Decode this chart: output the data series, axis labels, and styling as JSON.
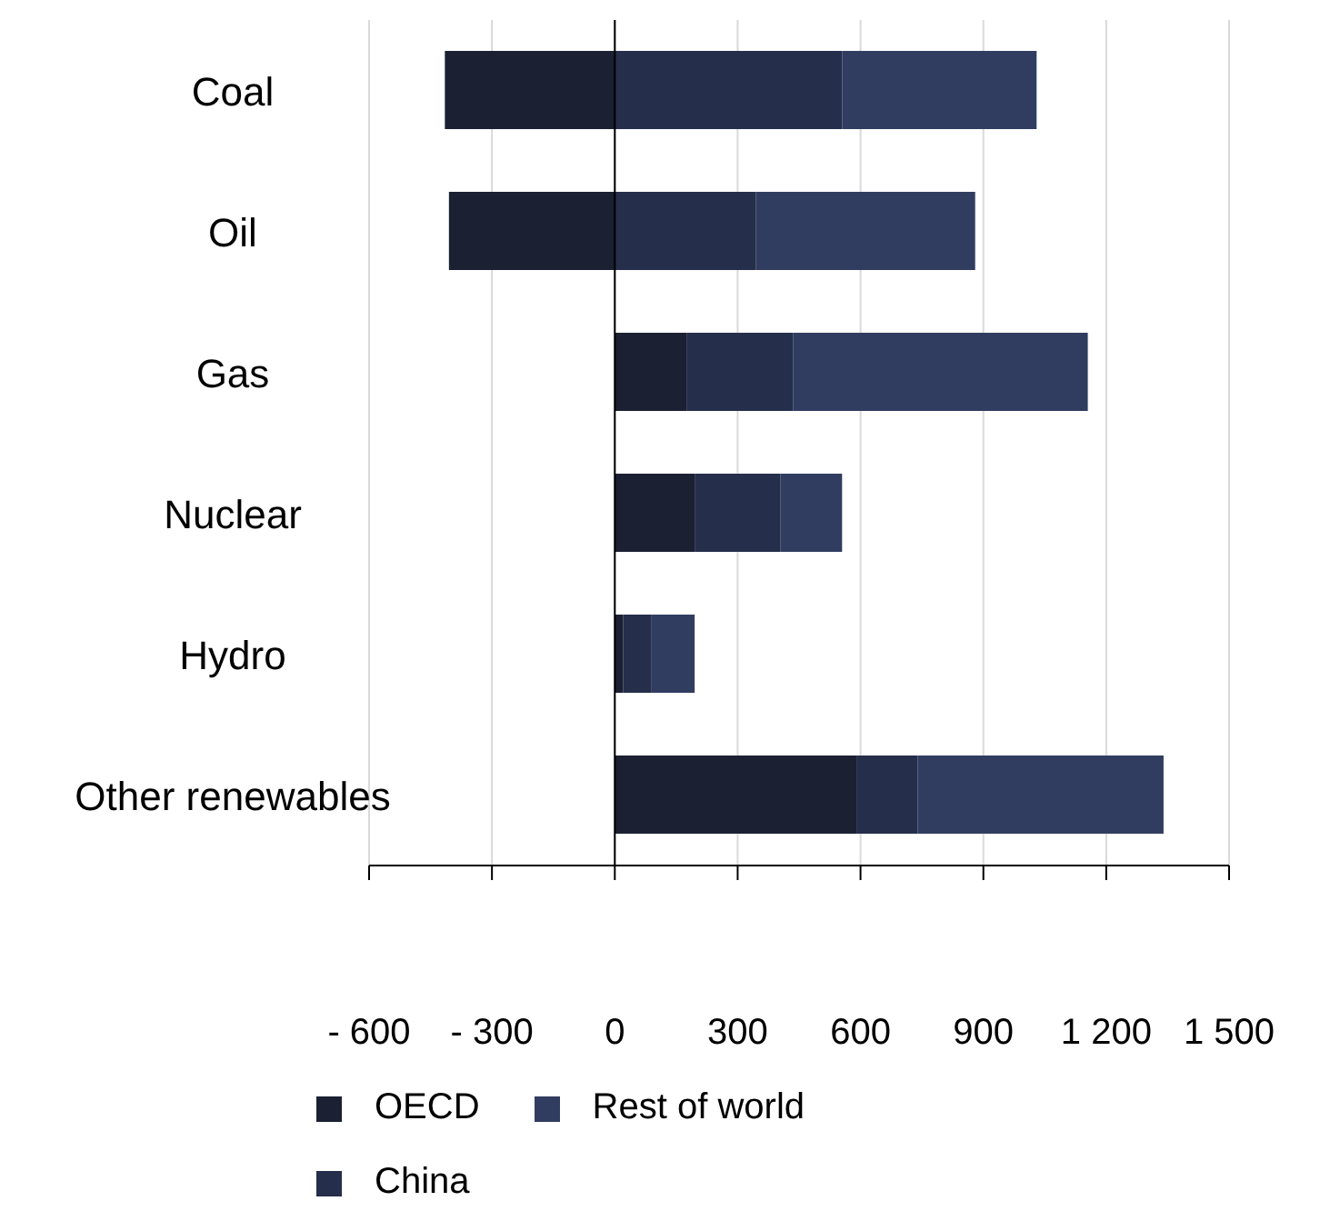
{
  "chart_data": {
    "type": "bar",
    "orientation": "horizontal",
    "stacked": true,
    "categories": [
      "Coal",
      "Oil",
      "Gas",
      "Nuclear",
      "Hydro",
      "Other renewables"
    ],
    "series": [
      {
        "name": "OECD",
        "color": "#1b2032",
        "values": [
          -415,
          -405,
          175,
          195,
          20,
          590
        ]
      },
      {
        "name": "China",
        "color": "#252e4a",
        "values": [
          555,
          345,
          260,
          210,
          70,
          150
        ]
      },
      {
        "name": "Rest of world",
        "color": "#313d60",
        "values": [
          475,
          535,
          720,
          150,
          105,
          600
        ]
      }
    ],
    "xlim": [
      -600,
      1500
    ],
    "xticks": [
      {
        "value": -600,
        "label": "- 600"
      },
      {
        "value": -300,
        "label": "- 300"
      },
      0,
      300,
      600,
      900,
      {
        "value": 1200,
        "label": "1 200"
      },
      {
        "value": 1500,
        "label": "1 500"
      }
    ],
    "grid": "x",
    "legend": "bottom"
  }
}
